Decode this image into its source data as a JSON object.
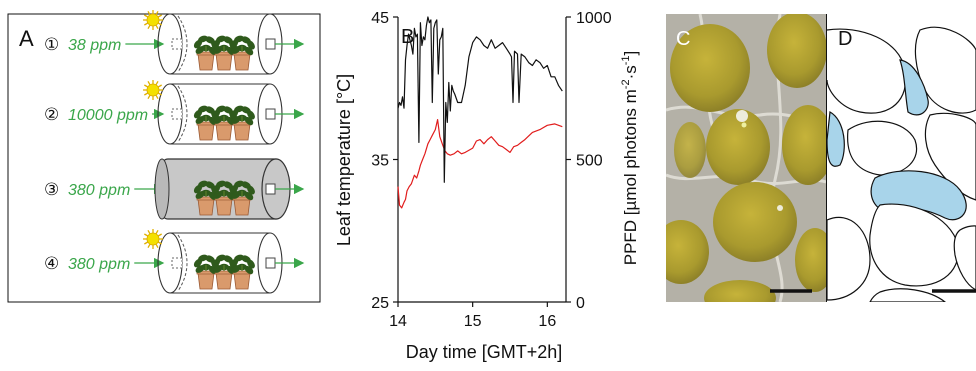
{
  "panel_a": {
    "label": "A",
    "chambers": [
      {
        "number": "①",
        "concentration": "38 ppm",
        "lit": true
      },
      {
        "number": "②",
        "concentration": "10000 ppm",
        "lit": true
      },
      {
        "number": "③",
        "concentration": "380 ppm",
        "lit": false
      },
      {
        "number": "④",
        "concentration": "380 ppm",
        "lit": true
      }
    ],
    "colors": {
      "text": "#3aa64a",
      "arrow": "#3aa64a",
      "pot": "#d99a6c",
      "leaf": "#2f5a1c",
      "sun": "#f4e000",
      "dark_chamber": "#c8c8c8"
    }
  },
  "panel_b": {
    "label": "B",
    "xlabel": "Day time [GMT+2h]",
    "ylabel_left": "Leaf temperature [°C]",
    "ylabel_right": "PPFD [µmol photons m⁻²·s⁻¹]",
    "ylabel_right_parts": {
      "main": "PPFD [µmol photons m",
      "sup1": "-2",
      "mid": "·s",
      "sup2": "-1",
      "end": "]"
    }
  },
  "panel_c": {
    "label": "C"
  },
  "panel_d": {
    "label": "D",
    "colors": {
      "fill": "#a8d4ea"
    }
  },
  "chart_data": {
    "type": "line",
    "xlim": [
      14,
      16.25
    ],
    "xticks": [
      14,
      15,
      16
    ],
    "y_left": {
      "lim": [
        25,
        45
      ],
      "ticks": [
        25,
        35,
        45
      ]
    },
    "y_right": {
      "lim": [
        0,
        1000
      ],
      "ticks": [
        0,
        500,
        1000
      ]
    },
    "series": [
      {
        "color": "#e11d1d",
        "axis": "left",
        "x": [
          14.0,
          14.02,
          14.05,
          14.08,
          14.1,
          14.12,
          14.15,
          14.18,
          14.2,
          14.22,
          14.25,
          14.28,
          14.3,
          14.33,
          14.36,
          14.4,
          14.43,
          14.46,
          14.5,
          14.53,
          14.56,
          14.6,
          14.63,
          14.66,
          14.7,
          14.75,
          14.8,
          14.85,
          14.9,
          15.0,
          15.05,
          15.1,
          15.15,
          15.2,
          15.25,
          15.3,
          15.35,
          15.4,
          15.45,
          15.5,
          15.55,
          15.6,
          15.65,
          15.7,
          15.8,
          15.9,
          16.0,
          16.1,
          16.2
        ],
        "y": [
          33.1,
          31.8,
          31.6,
          32.0,
          32.2,
          32.8,
          33.1,
          33.3,
          33.6,
          33.9,
          33.7,
          34.2,
          34.6,
          35.0,
          35.4,
          36.1,
          36.4,
          36.7,
          37.1,
          37.8,
          36.6,
          36.0,
          35.6,
          35.4,
          35.3,
          35.4,
          35.6,
          35.4,
          35.5,
          35.8,
          36.3,
          36.4,
          36.1,
          36.4,
          36.6,
          36.3,
          36.0,
          35.9,
          35.7,
          35.5,
          35.9,
          36.0,
          36.2,
          36.4,
          36.9,
          37.1,
          37.4,
          37.5,
          37.3
        ]
      },
      {
        "color": "#111111",
        "axis": "right",
        "x": [
          14.0,
          14.02,
          14.04,
          14.06,
          14.08,
          14.1,
          14.12,
          14.14,
          14.16,
          14.18,
          14.2,
          14.22,
          14.24,
          14.26,
          14.28,
          14.3,
          14.32,
          14.34,
          14.36,
          14.38,
          14.4,
          14.42,
          14.44,
          14.46,
          14.48,
          14.5,
          14.52,
          14.54,
          14.56,
          14.58,
          14.6,
          14.62,
          14.64,
          14.66,
          14.68,
          14.7,
          14.72,
          14.74,
          14.76,
          14.8,
          14.85,
          14.9,
          14.95,
          15.0,
          15.05,
          15.1,
          15.15,
          15.2,
          15.25,
          15.3,
          15.35,
          15.4,
          15.45,
          15.5,
          15.52,
          15.54,
          15.56,
          15.6,
          15.62,
          15.65,
          15.7,
          15.75,
          15.8,
          15.85,
          15.9,
          15.95,
          16.0,
          16.05,
          16.1,
          16.15,
          16.2
        ],
        "y": [
          680,
          700,
          690,
          720,
          680,
          850,
          900,
          940,
          920,
          900,
          870,
          960,
          930,
          940,
          560,
          980,
          900,
          930,
          920,
          970,
          1000,
          980,
          990,
          700,
          960,
          980,
          990,
          800,
          920,
          930,
          960,
          420,
          700,
          630,
          770,
          670,
          760,
          740,
          730,
          700,
          700,
          760,
          860,
          910,
          930,
          920,
          900,
          890,
          920,
          890,
          900,
          910,
          890,
          870,
          860,
          700,
          880,
          870,
          700,
          870,
          860,
          840,
          830,
          850,
          840,
          820,
          830,
          790,
          790,
          760,
          740
        ]
      }
    ]
  }
}
